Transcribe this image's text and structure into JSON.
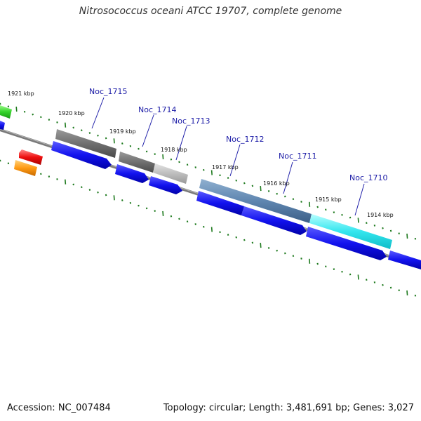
{
  "title": "Nitrosococcus oceani ATCC 19707, complete genome",
  "footer": {
    "accession": "Accession: NC_007484",
    "summary": "Topology: circular; Length: 3,481,691 bp; Genes: 3,027"
  },
  "colors": {
    "backbone": "#8c8c8c",
    "cds": "#0000ee",
    "tick": "#1e7a1e",
    "label": "#1a1aa6"
  },
  "scale_labels": [
    "1921 kbp",
    "1920 kbp",
    "1919 kbp",
    "1918 kbp",
    "1917 kbp",
    "1916 kbp",
    "1915 kbp",
    "1914 kbp"
  ],
  "gene_labels": [
    "Noc_1715",
    "Noc_1714",
    "Noc_1713",
    "Noc_1712",
    "Noc_1711",
    "Noc_1710"
  ]
}
